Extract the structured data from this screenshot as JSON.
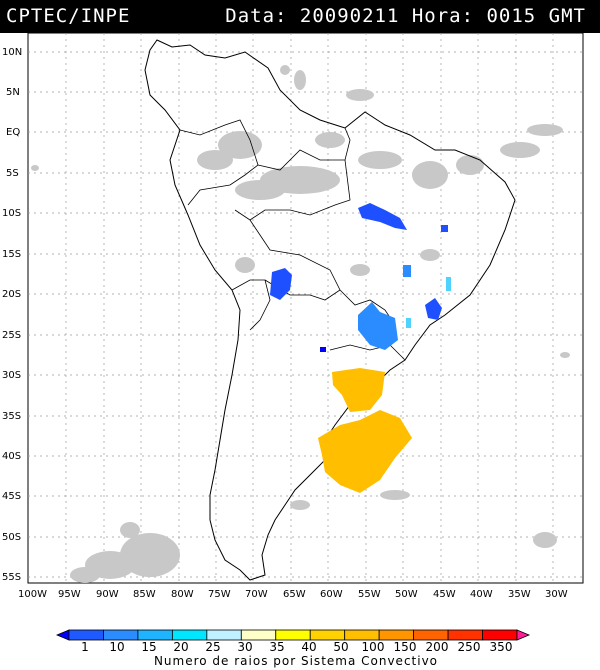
{
  "header": {
    "title": "CPTEC/INPE",
    "stamp": "Data: 20090211 Hora: 0015 GMT"
  },
  "axes": {
    "lat_labels": [
      "10N",
      "5N",
      "EQ",
      "5S",
      "10S",
      "15S",
      "20S",
      "25S",
      "30S",
      "35S",
      "40S",
      "45S",
      "50S",
      "55S"
    ],
    "lon_labels": [
      "100W",
      "95W",
      "90W",
      "85W",
      "80W",
      "75W",
      "70W",
      "65W",
      "60W",
      "55W",
      "50W",
      "45W",
      "40W",
      "35W",
      "30W"
    ]
  },
  "legend": {
    "title": "Numero de raios por Sistema Convectivo",
    "labels": [
      "1",
      "10",
      "15",
      "20",
      "25",
      "30",
      "35",
      "40",
      "50",
      "100",
      "150",
      "200",
      "250",
      "350"
    ],
    "colors": [
      "#0000ff",
      "#1e5aff",
      "#2a8cff",
      "#1fb4ff",
      "#00e6ff",
      "#bef0ff",
      "#ffffc8",
      "#ffff00",
      "#ffd200",
      "#ffbe00",
      "#ff9600",
      "#ff6400",
      "#ff3200",
      "#ff0000",
      "#ff1e9a"
    ]
  },
  "colors": {
    "cloud_gray": "#c8c8c8",
    "cell_blue": "#1e50ff",
    "cell_lightblue": "#2896ff",
    "cell_cyan": "#50d2ff",
    "cell_orange": "#ffbe00"
  }
}
